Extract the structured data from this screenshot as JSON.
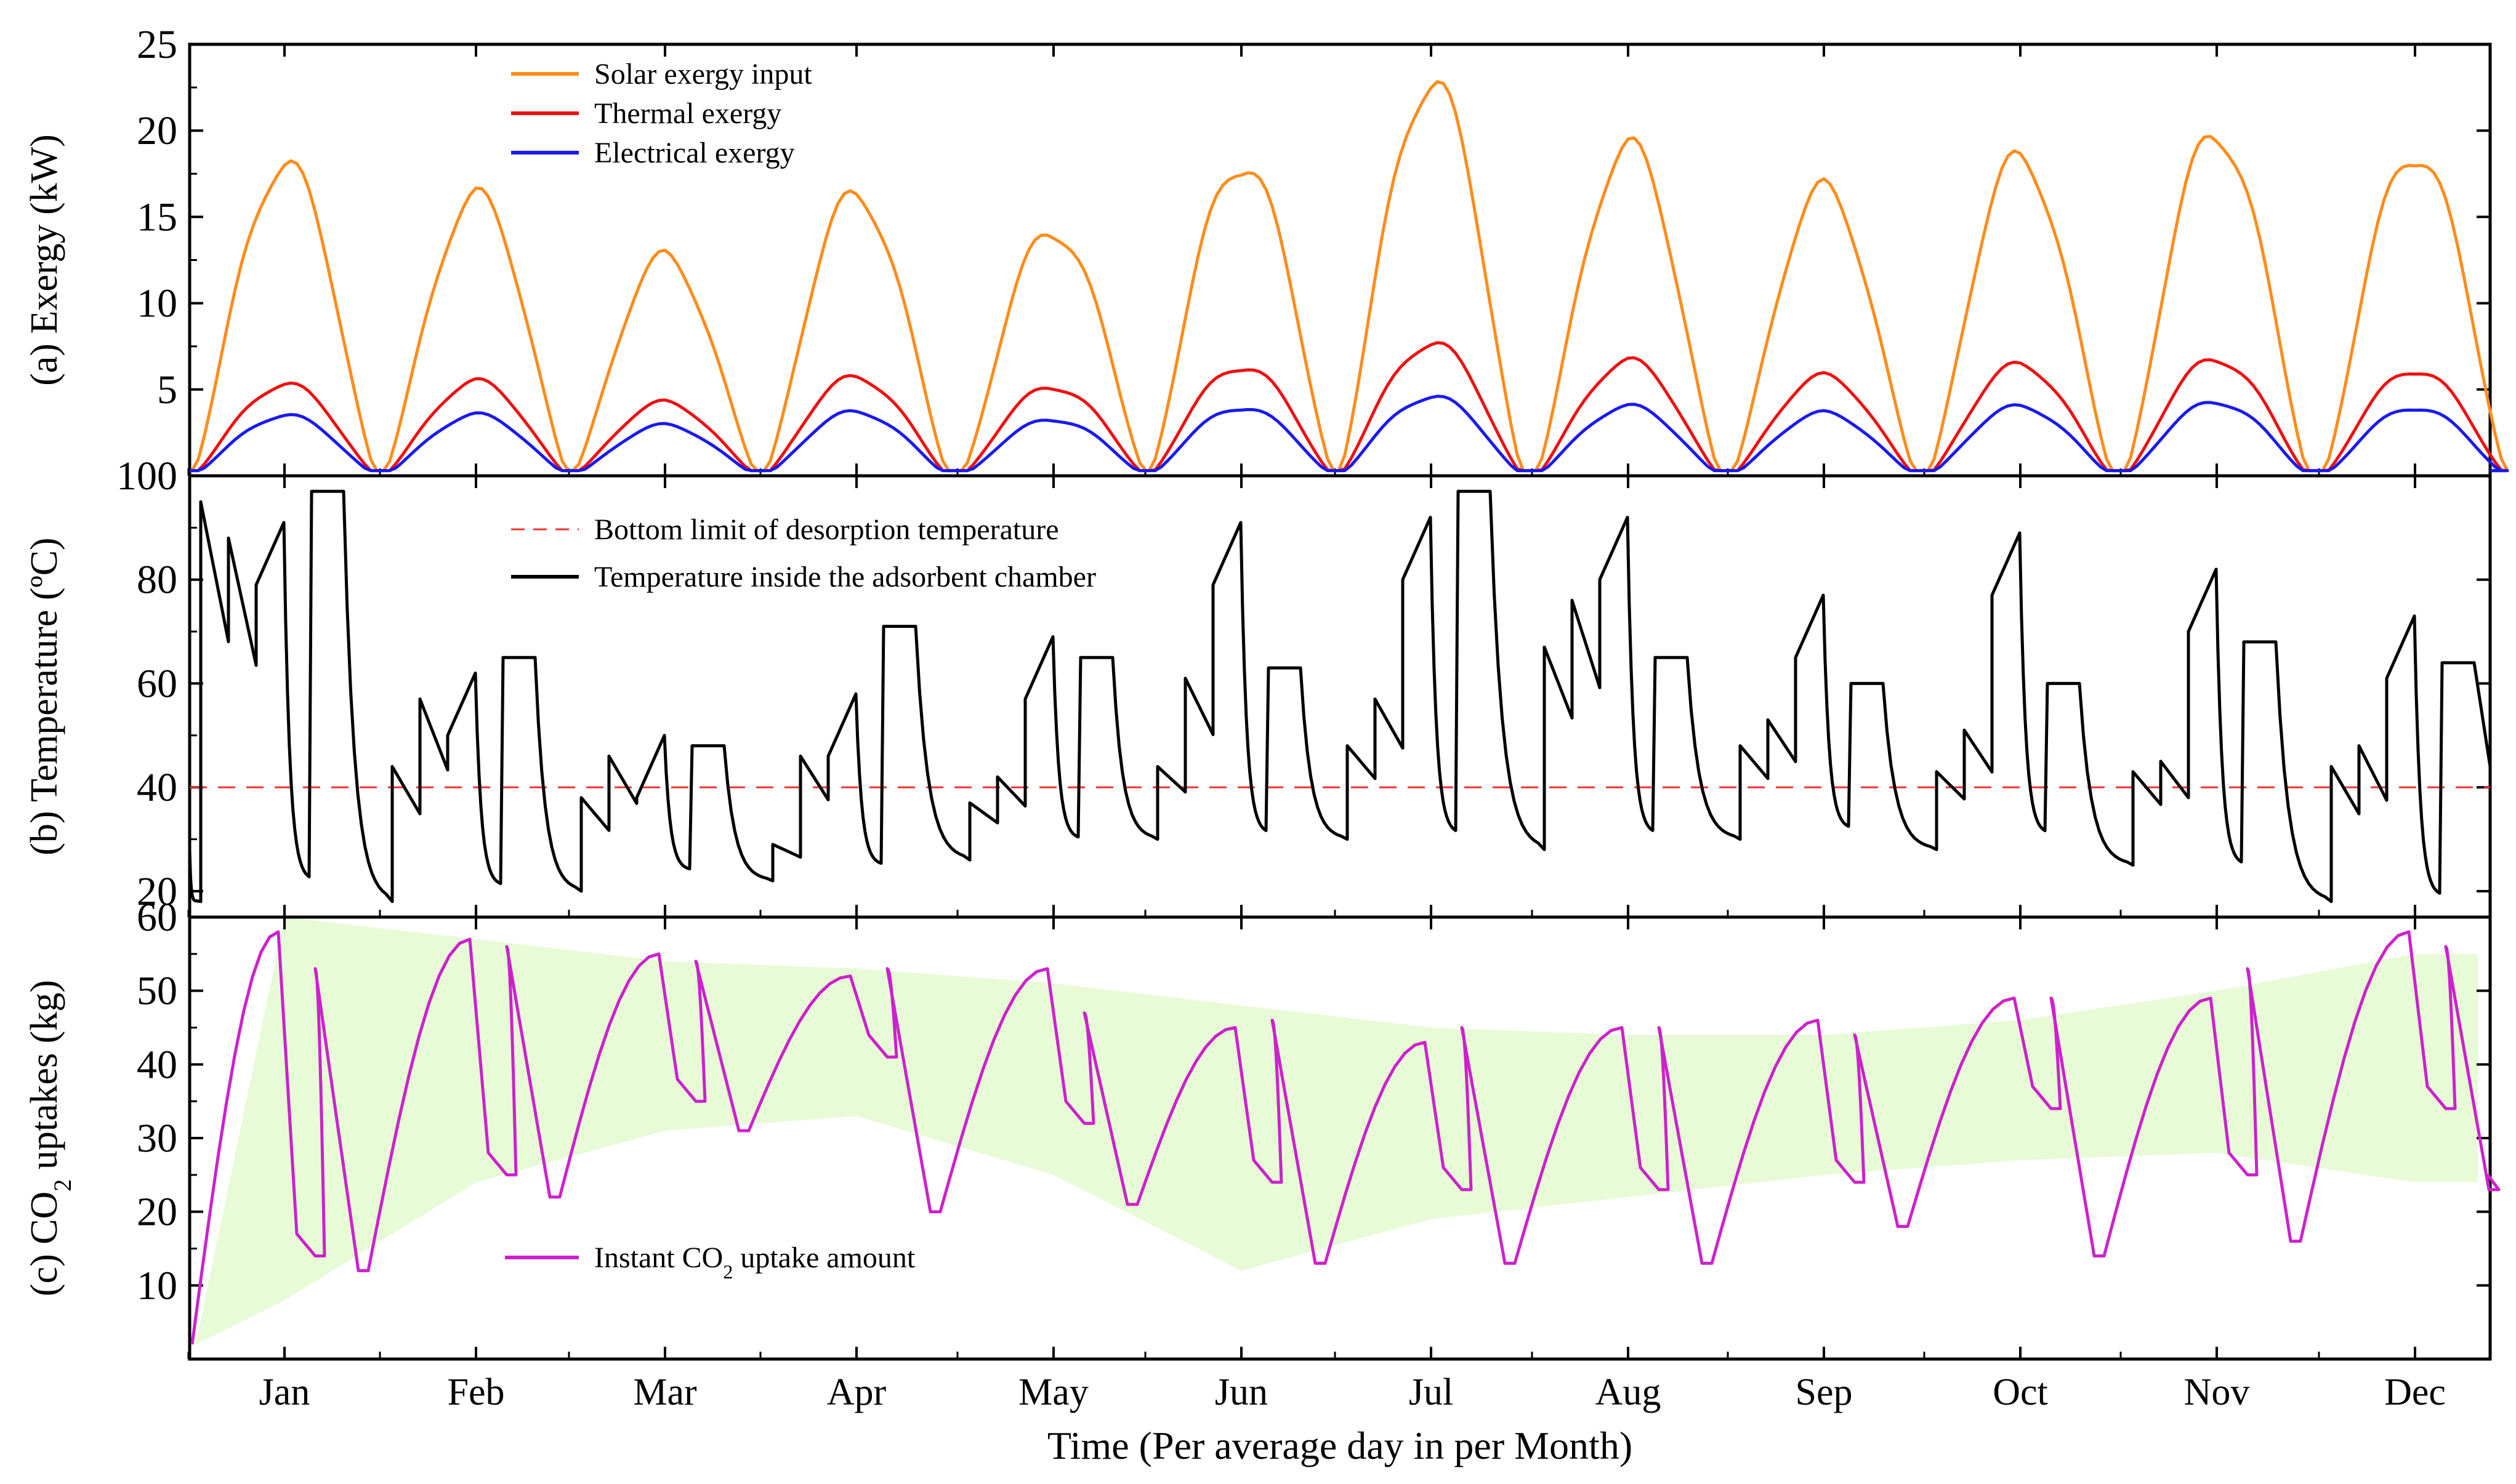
{
  "chart_data": {
    "type": "line",
    "x_title": "Time (Per average day in per Month)",
    "months": [
      "Jan",
      "Feb",
      "Mar",
      "Apr",
      "May",
      "Jun",
      "Jul",
      "Aug",
      "Sep",
      "Oct",
      "Nov",
      "Dec"
    ],
    "panels": [
      {
        "id": "exergy",
        "ylabel": "(a) Exergy (kW)",
        "ylim": [
          0,
          25
        ],
        "yticks": [
          5,
          10,
          15,
          20,
          25
        ],
        "series": [
          {
            "name": "Solar exergy input",
            "color": "#ff8c1a",
            "peaks": [
              18.0,
              16.0,
              12.5,
              16.2,
              14.3,
              18.3,
              22.8,
              18.9,
              16.4,
              18.3,
              19.9,
              18.9
            ]
          },
          {
            "name": "Thermal exergy",
            "color": "#ee1111",
            "peaks": [
              5.3,
              5.4,
              4.2,
              5.7,
              5.2,
              6.4,
              7.7,
              6.6,
              5.7,
              6.4,
              6.8,
              6.2
            ]
          },
          {
            "name": "Electrical exergy",
            "color": "#1a1aee",
            "peaks": [
              3.5,
              3.5,
              2.9,
              3.7,
              3.3,
              4.0,
              4.6,
              4.0,
              3.6,
              4.0,
              4.3,
              4.0
            ]
          }
        ]
      },
      {
        "id": "temperature",
        "ylabel": "(b) Temperature (ºC)",
        "ylim": [
          15,
          100
        ],
        "yticks": [
          20,
          40,
          60,
          80,
          100
        ],
        "limit": {
          "name": "Bottom limit of desorption temperature",
          "value": 40,
          "color": "#ee3333"
        },
        "series": [
          {
            "name": "Temperature inside the adsorbent chamber",
            "color": "#000000",
            "start": 28,
            "days": [
              {
                "min": 18,
                "p1": 95,
                "p2": 88,
                "p3": 91,
                "min2": 22,
                "plateau": 97
              },
              {
                "min": 18,
                "p1": 44,
                "p2": 57,
                "p3": 62,
                "min2": 21,
                "plateau": 65
              },
              {
                "min": 20,
                "p1": 38,
                "p2": 46,
                "p3": 50,
                "min2": 24,
                "plateau": 48
              },
              {
                "min": 22,
                "p1": 29,
                "p2": 46,
                "p3": 58,
                "min2": 25,
                "plateau": 71
              },
              {
                "min": 26,
                "p1": 37,
                "p2": 42,
                "p3": 69,
                "min2": 30,
                "plateau": 65
              },
              {
                "min": 30,
                "p1": 44,
                "p2": 61,
                "p3": 91,
                "min2": 31,
                "plateau": 63
              },
              {
                "min": 30,
                "p1": 48,
                "p2": 57,
                "p3": 92,
                "min2": 31,
                "plateau": 97
              },
              {
                "min": 28,
                "p1": 67,
                "p2": 76,
                "p3": 92,
                "min2": 31,
                "plateau": 65
              },
              {
                "min": 30,
                "p1": 48,
                "p2": 53,
                "p3": 77,
                "min2": 32,
                "plateau": 60
              },
              {
                "min": 28,
                "p1": 43,
                "p2": 51,
                "p3": 89,
                "min2": 31,
                "plateau": 60
              },
              {
                "min": 25,
                "p1": 43,
                "p2": 45,
                "p3": 82,
                "min2": 25,
                "plateau": 68
              },
              {
                "min": 18,
                "p1": 44,
                "p2": 48,
                "p3": 73,
                "min2": 19,
                "plateau": 64
              }
            ]
          }
        ]
      },
      {
        "id": "co2",
        "ylabel_prefix": "(c) CO",
        "ylabel_sub": "2",
        "ylabel_suffix": " uptakes (kg)",
        "ylim": [
          0,
          60
        ],
        "yticks": [
          10,
          20,
          30,
          40,
          50,
          60
        ],
        "band": {
          "color": "#e6fbd6",
          "upper": [
            60,
            57,
            54,
            53,
            51,
            48,
            45,
            44,
            44,
            46,
            50,
            55
          ],
          "lower": [
            8,
            24,
            31,
            33,
            25,
            12,
            19,
            22,
            25,
            27,
            28,
            24
          ]
        },
        "series": [
          {
            "name": "Instant CO₂ uptake amount",
            "legend_prefix": "Instant CO",
            "legend_sub": "2",
            "legend_suffix": " uptake amount",
            "color": "#cc22cc",
            "start": 2,
            "days": [
              {
                "peak1": 58,
                "low1": 14,
                "peak2": 53,
                "low2": 12
              },
              {
                "peak1": 57,
                "low1": 25,
                "peak2": 56,
                "low2": 22
              },
              {
                "peak1": 55,
                "low1": 35,
                "peak2": 54,
                "low2": 31
              },
              {
                "peak1": 52,
                "low1": 41,
                "peak2": 53,
                "low2": 20
              },
              {
                "peak1": 53,
                "low1": 32,
                "peak2": 47,
                "low2": 21
              },
              {
                "peak1": 45,
                "low1": 24,
                "peak2": 46,
                "low2": 13
              },
              {
                "peak1": 43,
                "low1": 23,
                "peak2": 45,
                "low2": 13
              },
              {
                "peak1": 45,
                "low1": 23,
                "peak2": 45,
                "low2": 13
              },
              {
                "peak1": 46,
                "low1": 24,
                "peak2": 44,
                "low2": 18
              },
              {
                "peak1": 49,
                "low1": 34,
                "peak2": 49,
                "low2": 14
              },
              {
                "peak1": 49,
                "low1": 25,
                "peak2": 53,
                "low2": 16
              },
              {
                "peak1": 58,
                "low1": 34,
                "peak2": 56,
                "low2": 23
              }
            ]
          }
        ]
      }
    ]
  }
}
